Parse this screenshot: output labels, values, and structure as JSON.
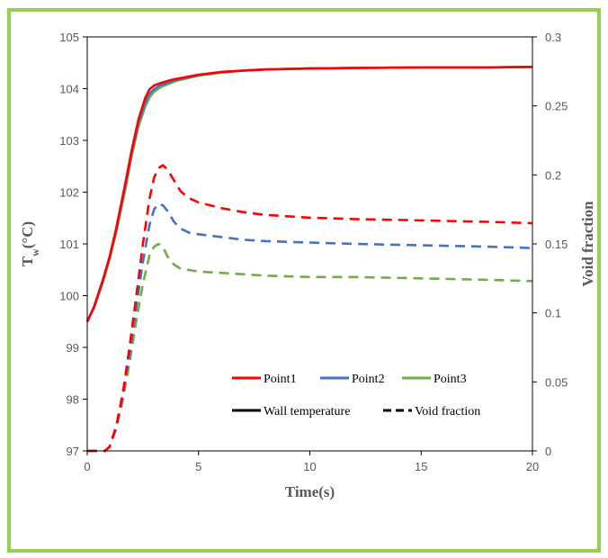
{
  "chart_data": {
    "type": "line",
    "xlabel": "Time(s)",
    "ylabel_left_main": "T",
    "ylabel_left_sub": "w",
    "ylabel_left_unit": "(°C)",
    "ylabel_right": "Void fraction",
    "xlim": [
      0,
      20
    ],
    "ylim_left": [
      97,
      105
    ],
    "ylim_right": [
      0,
      0.3
    ],
    "x_ticks": [
      "0",
      "5",
      "10",
      "15",
      "20"
    ],
    "y_left_ticks": [
      "97",
      "98",
      "99",
      "100",
      "101",
      "102",
      "103",
      "104",
      "105"
    ],
    "y_right_ticks": [
      "0",
      "0.05",
      "0.1",
      "0.15",
      "0.2",
      "0.25",
      "0.3"
    ],
    "grid": false,
    "legend": {
      "placement": "lower-right",
      "points": [
        {
          "label": "Point1",
          "color": "#ff0000"
        },
        {
          "label": "Point2",
          "color": "#4472c4"
        },
        {
          "label": "Point3",
          "color": "#70ad47"
        }
      ],
      "styles": [
        {
          "label": "Wall temperature",
          "style": "solid"
        },
        {
          "label": "Void fraction",
          "style": "dashed"
        }
      ]
    },
    "series": [
      {
        "name": "Point1",
        "color": "#ff0000",
        "axis": "left",
        "style": "solid",
        "x": [
          0,
          0.3,
          0.7,
          1,
          1.3,
          1.7,
          2,
          2.3,
          2.6,
          2.8,
          3,
          3.3,
          3.7,
          4,
          5,
          6,
          7,
          8,
          10,
          12,
          15,
          18,
          20
        ],
        "y": [
          99.5,
          99.78,
          100.3,
          100.75,
          101.3,
          102.15,
          102.82,
          103.4,
          103.82,
          103.99,
          104.06,
          104.11,
          104.16,
          104.19,
          104.27,
          104.32,
          104.35,
          104.37,
          104.39,
          104.4,
          104.41,
          104.41,
          104.42
        ]
      },
      {
        "name": "Point2",
        "color": "#4472c4",
        "axis": "left",
        "style": "solid",
        "x": [
          0,
          0.3,
          0.7,
          1,
          1.3,
          1.7,
          2,
          2.3,
          2.6,
          2.8,
          3,
          3.3,
          3.7,
          4,
          5,
          6,
          7,
          8,
          10,
          12,
          15,
          18,
          20
        ],
        "y": [
          99.5,
          99.77,
          100.28,
          100.73,
          101.27,
          102.1,
          102.77,
          103.34,
          103.73,
          103.9,
          103.99,
          104.07,
          104.13,
          104.17,
          104.26,
          104.32,
          104.35,
          104.37,
          104.39,
          104.4,
          104.41,
          104.41,
          104.42
        ]
      },
      {
        "name": "Point3",
        "color": "#70ad47",
        "axis": "left",
        "style": "solid",
        "x": [
          0,
          0.3,
          0.7,
          1,
          1.3,
          1.7,
          2,
          2.3,
          2.6,
          2.8,
          3,
          3.3,
          3.7,
          4,
          5,
          6,
          7,
          8,
          10,
          12,
          15,
          18,
          20
        ],
        "y": [
          99.5,
          99.76,
          100.25,
          100.7,
          101.22,
          102.03,
          102.7,
          103.26,
          103.65,
          103.83,
          103.94,
          104.03,
          104.1,
          104.15,
          104.25,
          104.31,
          104.35,
          104.37,
          104.39,
          104.4,
          104.41,
          104.41,
          104.42
        ]
      },
      {
        "name": "Point1",
        "color": "#ff0000",
        "axis": "right",
        "style": "dashed",
        "x": [
          0,
          0.8,
          1,
          1.3,
          1.6,
          1.9,
          2.2,
          2.5,
          2.8,
          3,
          3.2,
          3.4,
          3.6,
          3.9,
          4.2,
          4.6,
          5,
          6,
          7,
          8,
          10,
          12,
          15,
          18,
          20
        ],
        "y": [
          0,
          0,
          0.003,
          0.018,
          0.042,
          0.075,
          0.112,
          0.15,
          0.183,
          0.198,
          0.205,
          0.207,
          0.204,
          0.196,
          0.188,
          0.183,
          0.18,
          0.176,
          0.173,
          0.171,
          0.169,
          0.168,
          0.167,
          0.166,
          0.165
        ]
      },
      {
        "name": "Point2",
        "color": "#4472c4",
        "axis": "right",
        "style": "dashed",
        "x": [
          0,
          0.8,
          1,
          1.3,
          1.6,
          1.9,
          2.2,
          2.5,
          2.8,
          3,
          3.2,
          3.4,
          3.6,
          3.9,
          4.2,
          4.6,
          5,
          6,
          7,
          8,
          10,
          12,
          15,
          18,
          20
        ],
        "y": [
          0,
          0,
          0.003,
          0.017,
          0.04,
          0.07,
          0.104,
          0.137,
          0.164,
          0.175,
          0.179,
          0.178,
          0.174,
          0.166,
          0.161,
          0.158,
          0.157,
          0.155,
          0.153,
          0.152,
          0.151,
          0.15,
          0.149,
          0.148,
          0.147
        ]
      },
      {
        "name": "Point3",
        "color": "#70ad47",
        "axis": "right",
        "style": "dashed",
        "x": [
          0,
          0.8,
          1,
          1.3,
          1.6,
          1.9,
          2.2,
          2.5,
          2.8,
          3,
          3.2,
          3.4,
          3.6,
          3.9,
          4.2,
          4.6,
          5,
          6,
          7,
          8,
          10,
          12,
          15,
          18,
          20
        ],
        "y": [
          0,
          0,
          0.003,
          0.016,
          0.037,
          0.064,
          0.094,
          0.121,
          0.142,
          0.148,
          0.15,
          0.148,
          0.141,
          0.135,
          0.132,
          0.131,
          0.13,
          0.129,
          0.128,
          0.127,
          0.126,
          0.126,
          0.125,
          0.124,
          0.123
        ]
      }
    ]
  }
}
